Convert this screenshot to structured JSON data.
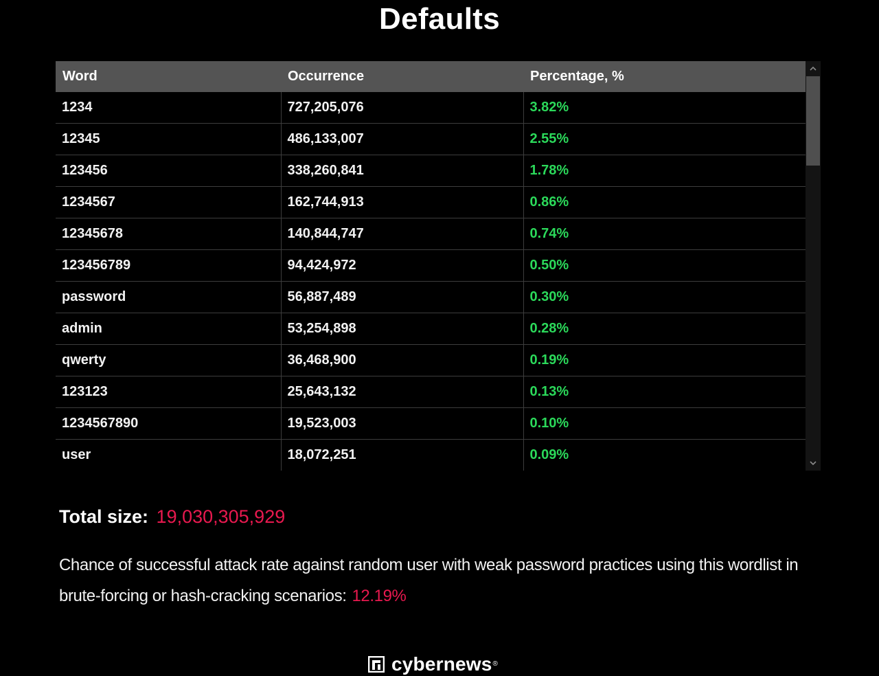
{
  "title": "Defaults",
  "table": {
    "headers": [
      "Word",
      "Occurrence",
      "Percentage, %"
    ],
    "rows": [
      [
        "1234",
        "727,205,076",
        "3.82%"
      ],
      [
        "12345",
        "486,133,007",
        "2.55%"
      ],
      [
        "123456",
        "338,260,841",
        "1.78%"
      ],
      [
        "1234567",
        "162,744,913",
        "0.86%"
      ],
      [
        "12345678",
        "140,844,747",
        "0.74%"
      ],
      [
        "123456789",
        "94,424,972",
        "0.50%"
      ],
      [
        "password",
        "56,887,489",
        "0.30%"
      ],
      [
        "admin",
        "53,254,898",
        "0.28%"
      ],
      [
        "qwerty",
        "36,468,900",
        "0.19%"
      ],
      [
        "123123",
        "25,643,132",
        "0.13%"
      ],
      [
        "1234567890",
        "19,523,003",
        "0.10%"
      ],
      [
        "user",
        "18,072,251",
        "0.09%"
      ]
    ]
  },
  "total": {
    "label": "Total size:",
    "value": "19,030,305,929"
  },
  "chance": {
    "text": "Chance of successful attack rate against random user with weak password practices using this wordlist in brute-forcing or hash-cracking scenarios:",
    "value": "12.19%"
  },
  "footer": {
    "brand": "cybernews",
    "registered": "®"
  },
  "colors": {
    "background": "#000000",
    "header_bg": "#545454",
    "percentage": "#2bd95a",
    "accent": "#e8194f"
  },
  "icons": {
    "scroll_up": "chevron-up-icon",
    "scroll_down": "chevron-down-icon",
    "logo": "cybernews-logo-icon"
  }
}
